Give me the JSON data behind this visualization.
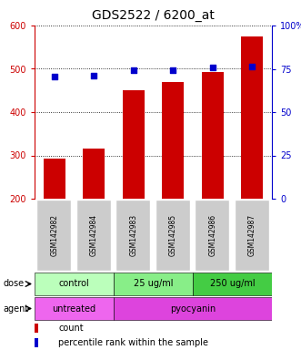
{
  "title": "GDS2522 / 6200_at",
  "samples": [
    "GSM142982",
    "GSM142984",
    "GSM142983",
    "GSM142985",
    "GSM142986",
    "GSM142987"
  ],
  "counts": [
    293,
    315,
    450,
    470,
    492,
    575
  ],
  "percentiles": [
    70.5,
    71.0,
    74.0,
    74.0,
    76.0,
    76.5
  ],
  "ylim_left": [
    200,
    600
  ],
  "ylim_right": [
    0,
    100
  ],
  "left_ticks": [
    200,
    300,
    400,
    500,
    600
  ],
  "right_ticks": [
    0,
    25,
    50,
    75,
    100
  ],
  "right_tick_labels": [
    "0",
    "25",
    "50",
    "75",
    "100%"
  ],
  "bar_color": "#cc0000",
  "marker_color": "#0000cc",
  "bar_bottom": 200,
  "dose_groups": [
    {
      "label": "control",
      "start": 0,
      "end": 2,
      "color": "#bbffbb"
    },
    {
      "label": "25 ug/ml",
      "start": 2,
      "end": 4,
      "color": "#88ee88"
    },
    {
      "label": "250 ug/ml",
      "start": 4,
      "end": 6,
      "color": "#44cc44"
    }
  ],
  "agent_groups": [
    {
      "label": "untreated",
      "start": 0,
      "end": 2,
      "color": "#ee66ee"
    },
    {
      "label": "pyocyanin",
      "start": 2,
      "end": 6,
      "color": "#dd44dd"
    }
  ],
  "dose_label": "dose",
  "agent_label": "agent",
  "legend_count_label": "count",
  "legend_pct_label": "percentile rank within the sample",
  "grid_color": "black",
  "sample_box_color": "#cccccc",
  "title_fontsize": 10,
  "axis_fontsize": 7,
  "label_fontsize": 7,
  "legend_fontsize": 7
}
